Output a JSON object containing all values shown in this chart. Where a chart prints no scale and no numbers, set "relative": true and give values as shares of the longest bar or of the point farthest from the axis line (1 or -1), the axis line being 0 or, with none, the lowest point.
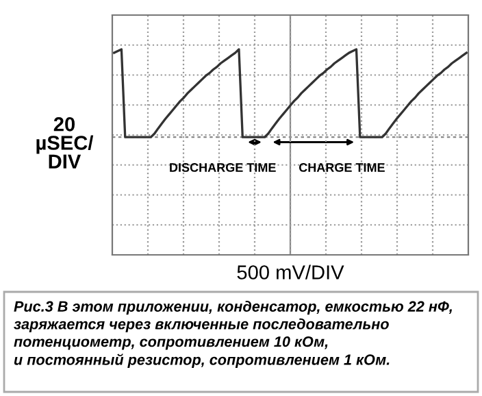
{
  "chart_data": {
    "type": "line",
    "relative": true,
    "tick_labels": false,
    "grid": true,
    "marker": "none",
    "line_style": "solid",
    "ylabel": "20\nµSEC/\nDIV",
    "categories": [
      null,
      null,
      null,
      null,
      null,
      null,
      null,
      null,
      null,
      null,
      null,
      null,
      null,
      null,
      null,
      null,
      null,
      null,
      null,
      null,
      null,
      null,
      null,
      null,
      null,
      null,
      null,
      null,
      null,
      null,
      null,
      null,
      null,
      null,
      null,
      null,
      null,
      null,
      null,
      null,
      null,
      null,
      null,
      null,
      null,
      null,
      null,
      null,
      null,
      null,
      null,
      null,
      null,
      null,
      null,
      null,
      null,
      null,
      null,
      null,
      null,
      null,
      null,
      null,
      null,
      null,
      null,
      null,
      null,
      null,
      null,
      null,
      null,
      null,
      null,
      null,
      null,
      null,
      null,
      null,
      null,
      null,
      null,
      null,
      null,
      null,
      null,
      null,
      null,
      null,
      null,
      null,
      null,
      null,
      null,
      null,
      null
    ],
    "series": [
      {
        "color": "#333333",
        "values": [
          0.96,
          0.98,
          1.0,
          0,
          0,
          0,
          0,
          0,
          0,
          0,
          0,
          0.04,
          0.1,
          0.155,
          0.21,
          0.26,
          0.31,
          0.36,
          0.41,
          0.45,
          0.5,
          0.54,
          0.58,
          0.62,
          0.66,
          0.7,
          0.73,
          0.77,
          0.8,
          0.84,
          0.87,
          0.9,
          0.93,
          0.96,
          1.0,
          0,
          0,
          0,
          0,
          0,
          0,
          0,
          0.04,
          0.1,
          0.155,
          0.21,
          0.26,
          0.31,
          0.36,
          0.41,
          0.45,
          0.5,
          0.54,
          0.58,
          0.62,
          0.66,
          0.7,
          0.73,
          0.77,
          0.8,
          0.84,
          0.87,
          0.9,
          0.93,
          0.96,
          0.98,
          1.0,
          0,
          0,
          0,
          0,
          0,
          0,
          0,
          0.04,
          0.1,
          0.155,
          0.21,
          0.26,
          0.31,
          0.36,
          0.41,
          0.45,
          0.5,
          0.54,
          0.58,
          0.62,
          0.66,
          0.7,
          0.73,
          0.77,
          0.8,
          0.84,
          0.87,
          0.9,
          0.93,
          0.96
        ]
      }
    ],
    "annotations": [
      "500 mV/DIV",
      "DISCHARGE TIME",
      "CHARGE TIME",
      "Рис.3 В этом приложении, конденсатор, емкостью 22 нФ,\nзаряжается через включенные последовательно\nпотенциометр, сопротивлением 10 кОм,\nи постоянный резистор, сопротивлением 1 кОм."
    ]
  }
}
